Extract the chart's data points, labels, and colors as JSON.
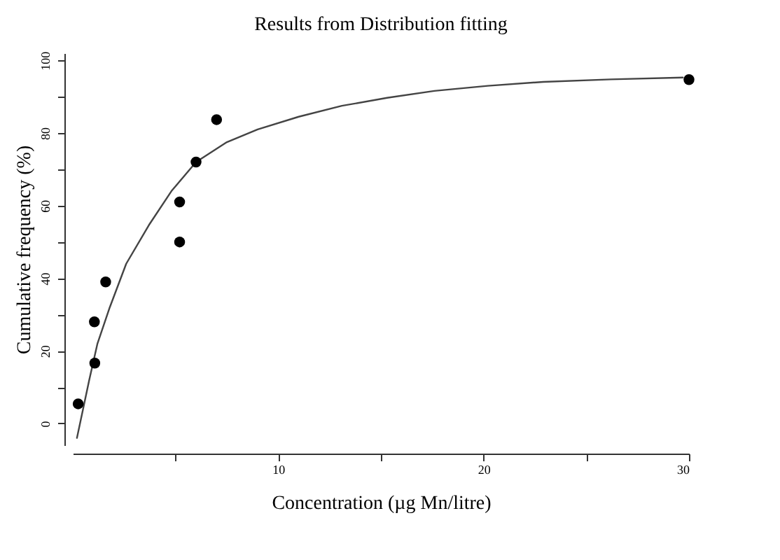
{
  "chart_data": {
    "type": "scatter",
    "title": "Results from Distribution fitting",
    "xlabel": "Concentration (µg Mn/litre)",
    "ylabel": "Cumulative frequency (%)",
    "xlim": [
      0,
      30
    ],
    "ylim": [
      -6,
      102
    ],
    "xticks": [
      {
        "value": 5,
        "label": null
      },
      10,
      {
        "value": 15,
        "label": null
      },
      20,
      {
        "value": 25,
        "label": null
      },
      30
    ],
    "yticks": [
      0,
      {
        "value": 10,
        "label": null
      },
      20,
      {
        "value": 30,
        "label": null
      },
      40,
      {
        "value": 50,
        "label": null
      },
      60,
      {
        "value": 70,
        "label": null
      },
      80,
      {
        "value": 90,
        "label": null
      },
      100
    ],
    "marker": "circle",
    "grid": false,
    "series": [
      {
        "color": "#000000",
        "x": [
          0.26,
          1.07,
          1.05,
          1.6,
          5.2,
          5.2,
          6.0,
          7.0,
          30
        ],
        "values": [
          5.4,
          16.6,
          28,
          39,
          50,
          61,
          72,
          83.7,
          94.7
        ]
      },
      {
        "type": "line",
        "marker": "none",
        "color": "#444444",
        "x": [
          0.2,
          0.5,
          0.8,
          1.2,
          1.8,
          2.6,
          3.7,
          4.8,
          6.0,
          7.5,
          9.0,
          11,
          13.1,
          15.3,
          17.6,
          20.2,
          22.9,
          26.2,
          29.7
        ],
        "values": [
          -4,
          4,
          12,
          22,
          32,
          44,
          54.6,
          64,
          72,
          77.5,
          81,
          84.5,
          87.5,
          89.7,
          91.6,
          93,
          94.1,
          94.8,
          95.3
        ]
      }
    ]
  }
}
